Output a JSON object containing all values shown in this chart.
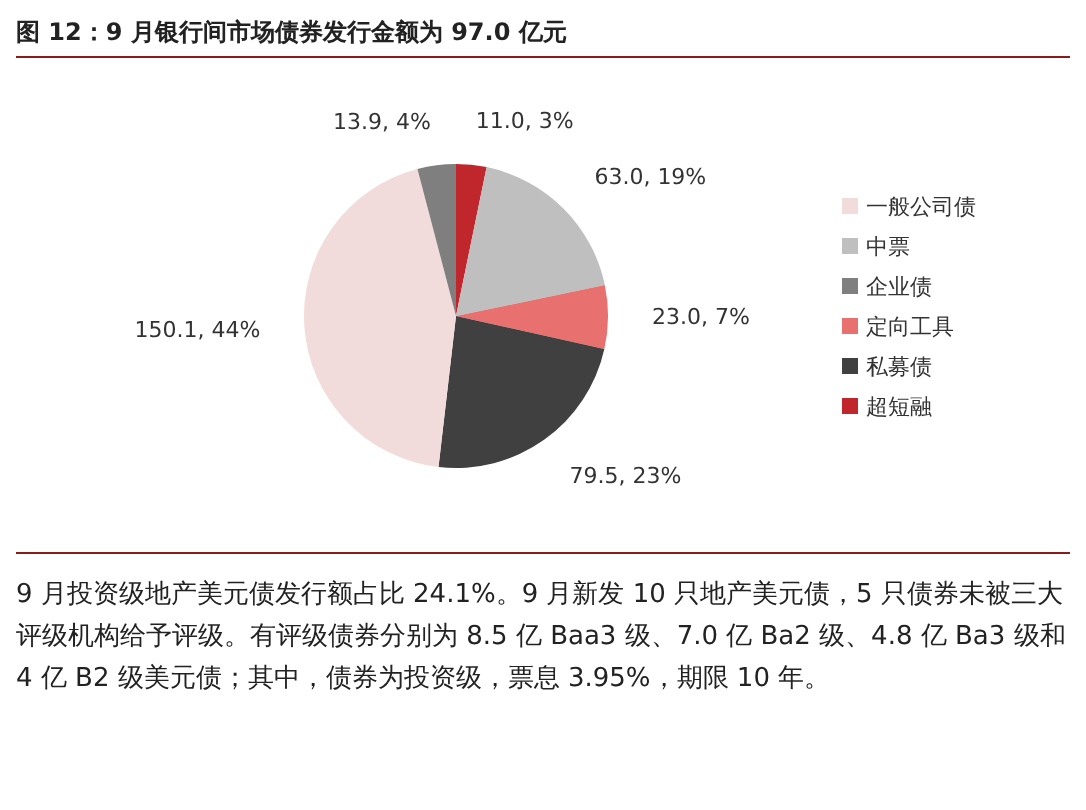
{
  "chart_data": {
    "type": "pie",
    "title": "图 12：9 月银行间市场债券发行金额为 97.0 亿元",
    "categories": [
      "超短融",
      "中票",
      "定向工具",
      "私募债",
      "一般公司债",
      "企业债"
    ],
    "values": [
      11.0,
      63.0,
      23.0,
      79.5,
      150.1,
      13.9
    ],
    "colors": [
      "#c0272d",
      "#bfbfbf",
      "#e8706e",
      "#404040",
      "#f2dcdb",
      "#7f7f7f"
    ],
    "value_labels": [
      "11.0, 3%",
      "63.0, 19%",
      "23.0, 7%",
      "79.5, 23%",
      "150.1, 44%",
      "13.9, 4%"
    ],
    "legend": "right",
    "annotations": [
      "9 月投资级地产美元债发行额占比 24.1%。9 月新发 10 只地产美元债，5 只债券未被三大评级机构给予评级。有评级债券分别为 8.5 亿 Baa3 级、7.0 亿 Ba2 级、4.8 亿 Ba3 级和 4 亿 B2 级美元债；其中，债券为投资级，票息 3.95%，期限 10 年。"
    ]
  }
}
